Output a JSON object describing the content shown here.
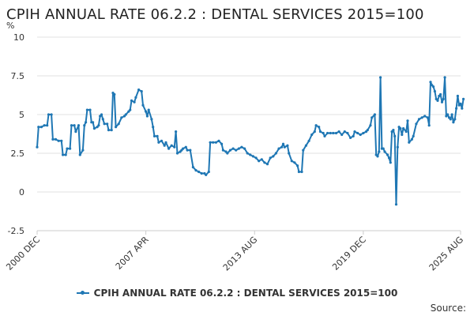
{
  "chart_data": {
    "type": "line",
    "title": "CPIH ANNUAL RATE 06.2.2 : DENTAL SERVICES 2015=100",
    "ylabel": "%",
    "xlabel": "",
    "ylim": [
      -2.5,
      10
    ],
    "yticks": [
      -2.5,
      0,
      2.5,
      5,
      7.5,
      10
    ],
    "ytick_labels": [
      "-2.5",
      "0",
      "2.5",
      "5",
      "7.5",
      "10"
    ],
    "xtick_labels": [
      {
        "label": "2000 DEC",
        "date": "2000-12"
      },
      {
        "label": "2007 APR",
        "date": "2007-04"
      },
      {
        "label": "2013 AUG",
        "date": "2013-08"
      },
      {
        "label": "2019 DEC",
        "date": "2019-12"
      },
      {
        "label": "2025 AUG",
        "date": "2025-08"
      }
    ],
    "grid": "horizontal",
    "legend": "bottom",
    "source_label": "Source:",
    "series": [
      {
        "name": "CPIH ANNUAL RATE 06.2.2 : DENTAL SERVICES 2015=100",
        "color": "#1f77b4",
        "points": [
          [
            "2000-12",
            2.9
          ],
          [
            "2001-01",
            4.2
          ],
          [
            "2001-03",
            4.2
          ],
          [
            "2001-05",
            4.3
          ],
          [
            "2001-07",
            4.3
          ],
          [
            "2001-08",
            5.0
          ],
          [
            "2001-10",
            5.0
          ],
          [
            "2001-11",
            3.4
          ],
          [
            "2002-01",
            3.4
          ],
          [
            "2002-03",
            3.3
          ],
          [
            "2002-05",
            3.3
          ],
          [
            "2002-06",
            2.4
          ],
          [
            "2002-08",
            2.4
          ],
          [
            "2002-09",
            2.8
          ],
          [
            "2002-11",
            2.8
          ],
          [
            "2002-12",
            4.3
          ],
          [
            "2003-02",
            4.3
          ],
          [
            "2003-03",
            3.9
          ],
          [
            "2003-05",
            4.3
          ],
          [
            "2003-06",
            2.4
          ],
          [
            "2003-08",
            2.7
          ],
          [
            "2003-09",
            4.3
          ],
          [
            "2003-10",
            4.5
          ],
          [
            "2003-11",
            5.3
          ],
          [
            "2004-01",
            5.3
          ],
          [
            "2004-02",
            4.5
          ],
          [
            "2004-03",
            4.5
          ],
          [
            "2004-04",
            4.1
          ],
          [
            "2004-06",
            4.2
          ],
          [
            "2004-07",
            4.3
          ],
          [
            "2004-08",
            4.9
          ],
          [
            "2004-09",
            5.0
          ],
          [
            "2004-10",
            4.7
          ],
          [
            "2004-11",
            4.4
          ],
          [
            "2005-01",
            4.4
          ],
          [
            "2005-02",
            4.0
          ],
          [
            "2005-04",
            4.0
          ],
          [
            "2005-05",
            6.4
          ],
          [
            "2005-06",
            6.3
          ],
          [
            "2005-07",
            4.2
          ],
          [
            "2005-09",
            4.4
          ],
          [
            "2005-11",
            4.8
          ],
          [
            "2006-01",
            4.9
          ],
          [
            "2006-02",
            5.0
          ],
          [
            "2006-04",
            5.2
          ],
          [
            "2006-05",
            5.3
          ],
          [
            "2006-06",
            5.9
          ],
          [
            "2006-08",
            5.8
          ],
          [
            "2006-09",
            6.1
          ],
          [
            "2006-11",
            6.6
          ],
          [
            "2007-01",
            6.5
          ],
          [
            "2007-02",
            5.6
          ],
          [
            "2007-04",
            5.2
          ],
          [
            "2007-05",
            4.9
          ],
          [
            "2007-06",
            5.3
          ],
          [
            "2007-08",
            4.7
          ],
          [
            "2007-09",
            4.2
          ],
          [
            "2007-10",
            3.6
          ],
          [
            "2007-12",
            3.6
          ],
          [
            "2008-01",
            3.2
          ],
          [
            "2008-03",
            3.3
          ],
          [
            "2008-05",
            3.0
          ],
          [
            "2008-06",
            3.2
          ],
          [
            "2008-08",
            2.8
          ],
          [
            "2008-10",
            3.0
          ],
          [
            "2008-12",
            2.9
          ],
          [
            "2009-01",
            3.9
          ],
          [
            "2009-02",
            2.5
          ],
          [
            "2009-04",
            2.6
          ],
          [
            "2009-05",
            2.7
          ],
          [
            "2009-06",
            2.8
          ],
          [
            "2009-08",
            2.9
          ],
          [
            "2009-09",
            2.7
          ],
          [
            "2009-11",
            2.7
          ],
          [
            "2010-01",
            1.6
          ],
          [
            "2010-03",
            1.4
          ],
          [
            "2010-05",
            1.3
          ],
          [
            "2010-07",
            1.2
          ],
          [
            "2010-09",
            1.2
          ],
          [
            "2010-10",
            1.1
          ],
          [
            "2010-12",
            1.3
          ],
          [
            "2011-01",
            3.2
          ],
          [
            "2011-03",
            3.2
          ],
          [
            "2011-05",
            3.2
          ],
          [
            "2011-07",
            3.3
          ],
          [
            "2011-09",
            3.1
          ],
          [
            "2011-10",
            2.7
          ],
          [
            "2011-12",
            2.6
          ],
          [
            "2012-01",
            2.5
          ],
          [
            "2012-03",
            2.7
          ],
          [
            "2012-05",
            2.8
          ],
          [
            "2012-07",
            2.7
          ],
          [
            "2012-09",
            2.8
          ],
          [
            "2012-11",
            2.9
          ],
          [
            "2013-01",
            2.8
          ],
          [
            "2013-03",
            2.5
          ],
          [
            "2013-05",
            2.4
          ],
          [
            "2013-07",
            2.3
          ],
          [
            "2013-09",
            2.2
          ],
          [
            "2013-11",
            2.0
          ],
          [
            "2014-01",
            2.1
          ],
          [
            "2014-03",
            1.9
          ],
          [
            "2014-05",
            1.8
          ],
          [
            "2014-07",
            2.2
          ],
          [
            "2014-09",
            2.3
          ],
          [
            "2014-11",
            2.5
          ],
          [
            "2015-01",
            2.8
          ],
          [
            "2015-03",
            2.9
          ],
          [
            "2015-04",
            3.1
          ],
          [
            "2015-05",
            2.9
          ],
          [
            "2015-07",
            3.0
          ],
          [
            "2015-08",
            2.5
          ],
          [
            "2015-10",
            2.0
          ],
          [
            "2015-12",
            1.9
          ],
          [
            "2016-02",
            1.7
          ],
          [
            "2016-03",
            1.3
          ],
          [
            "2016-05",
            1.3
          ],
          [
            "2016-06",
            2.7
          ],
          [
            "2016-08",
            3.0
          ],
          [
            "2016-10",
            3.3
          ],
          [
            "2016-12",
            3.7
          ],
          [
            "2017-02",
            3.9
          ],
          [
            "2017-03",
            4.3
          ],
          [
            "2017-05",
            4.2
          ],
          [
            "2017-06",
            3.9
          ],
          [
            "2017-08",
            3.8
          ],
          [
            "2017-09",
            3.6
          ],
          [
            "2017-11",
            3.8
          ],
          [
            "2018-01",
            3.8
          ],
          [
            "2018-03",
            3.8
          ],
          [
            "2018-05",
            3.8
          ],
          [
            "2018-07",
            3.9
          ],
          [
            "2018-09",
            3.7
          ],
          [
            "2018-11",
            3.9
          ],
          [
            "2019-01",
            3.8
          ],
          [
            "2019-03",
            3.5
          ],
          [
            "2019-05",
            3.6
          ],
          [
            "2019-06",
            3.9
          ],
          [
            "2019-08",
            3.8
          ],
          [
            "2019-10",
            3.7
          ],
          [
            "2019-12",
            3.8
          ],
          [
            "2020-02",
            3.9
          ],
          [
            "2020-03",
            4.0
          ],
          [
            "2020-05",
            4.3
          ],
          [
            "2020-06",
            4.8
          ],
          [
            "2020-08",
            5.0
          ],
          [
            "2020-09",
            2.4
          ],
          [
            "2020-10",
            2.3
          ],
          [
            "2020-11",
            2.6
          ],
          [
            "2020-12",
            7.4
          ],
          [
            "2021-01",
            2.8
          ],
          [
            "2021-02",
            2.8
          ],
          [
            "2021-03",
            2.6
          ],
          [
            "2021-05",
            2.4
          ],
          [
            "2021-06",
            2.2
          ],
          [
            "2021-07",
            1.9
          ],
          [
            "2021-08",
            3.9
          ],
          [
            "2021-09",
            4.0
          ],
          [
            "2021-10",
            3.6
          ],
          [
            "2021-11",
            -0.8
          ],
          [
            "2021-12",
            2.9
          ],
          [
            "2022-01",
            4.2
          ],
          [
            "2022-02",
            4.1
          ],
          [
            "2022-03",
            3.7
          ],
          [
            "2022-04",
            4.1
          ],
          [
            "2022-06",
            3.9
          ],
          [
            "2022-07",
            4.6
          ],
          [
            "2022-08",
            3.2
          ],
          [
            "2022-10",
            3.4
          ],
          [
            "2022-11",
            3.6
          ],
          [
            "2023-01",
            4.4
          ],
          [
            "2023-03",
            4.7
          ],
          [
            "2023-05",
            4.8
          ],
          [
            "2023-07",
            4.9
          ],
          [
            "2023-09",
            4.8
          ],
          [
            "2023-10",
            4.3
          ],
          [
            "2023-11",
            7.1
          ],
          [
            "2023-12",
            6.9
          ],
          [
            "2024-01",
            6.8
          ],
          [
            "2024-02",
            6.5
          ],
          [
            "2024-03",
            6.0
          ],
          [
            "2024-04",
            5.9
          ],
          [
            "2024-05",
            6.2
          ],
          [
            "2024-06",
            6.3
          ],
          [
            "2024-07",
            5.8
          ],
          [
            "2024-08",
            6.0
          ],
          [
            "2024-09",
            7.4
          ],
          [
            "2024-10",
            4.9
          ],
          [
            "2024-11",
            5.0
          ],
          [
            "2024-12",
            4.8
          ],
          [
            "2025-01",
            4.7
          ],
          [
            "2025-02",
            5.0
          ],
          [
            "2025-03",
            4.5
          ],
          [
            "2025-04",
            4.7
          ],
          [
            "2025-05",
            5.4
          ],
          [
            "2025-06",
            6.2
          ],
          [
            "2025-07",
            5.6
          ],
          [
            "2025-08",
            5.7
          ],
          [
            "2025-09",
            5.4
          ],
          [
            "2025-10",
            6.0
          ]
        ]
      }
    ]
  }
}
